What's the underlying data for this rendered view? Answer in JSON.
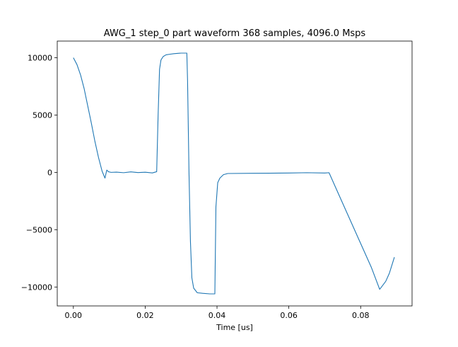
{
  "chart_data": {
    "type": "line",
    "title": "AWG_1 step_0 part waveform 368 samples, 4096.0 Msps",
    "xlabel": "Time [us]",
    "ylabel": "",
    "xlim": [
      -0.00449,
      0.09432
    ],
    "ylim": [
      -11650,
      11450
    ],
    "xticks": [
      0.0,
      0.02,
      0.04,
      0.06,
      0.08
    ],
    "xtick_labels": [
      "0.00",
      "0.02",
      "0.04",
      "0.06",
      "0.08"
    ],
    "yticks": [
      -10000,
      -5000,
      0,
      5000,
      10000
    ],
    "ytick_labels": [
      "−10000",
      "−5000",
      "0",
      "5000",
      "10000"
    ],
    "grid": false,
    "legend": "none",
    "series": [
      {
        "color": "#1f77b4",
        "x": [
          0.0,
          0.001,
          0.002,
          0.003,
          0.004,
          0.005,
          0.006,
          0.007,
          0.008,
          0.0088,
          0.0093,
          0.0098,
          0.0105,
          0.012,
          0.014,
          0.016,
          0.018,
          0.02,
          0.022,
          0.0232,
          0.0236,
          0.024,
          0.0244,
          0.025,
          0.0258,
          0.0268,
          0.028,
          0.03,
          0.0316,
          0.0318,
          0.0322,
          0.0326,
          0.033,
          0.0335,
          0.0345,
          0.036,
          0.038,
          0.0394,
          0.0397,
          0.0402,
          0.0408,
          0.0418,
          0.043,
          0.05,
          0.06,
          0.065,
          0.07,
          0.0712,
          0.074,
          0.077,
          0.08,
          0.083,
          0.0853,
          0.0858,
          0.087,
          0.088,
          0.0894
        ],
        "y": [
          10000,
          9400,
          8500,
          7300,
          5800,
          4300,
          2700,
          1300,
          100,
          -500,
          200,
          50,
          0,
          20,
          -30,
          40,
          -20,
          10,
          -50,
          60,
          5000,
          9000,
          9800,
          10100,
          10250,
          10300,
          10350,
          10400,
          10400,
          8000,
          0,
          -6000,
          -9200,
          -10100,
          -10500,
          -10550,
          -10600,
          -10600,
          -3000,
          -900,
          -500,
          -200,
          -100,
          -80,
          -60,
          -30,
          -60,
          -30,
          -2000,
          -4100,
          -6200,
          -8300,
          -10200,
          -10000,
          -9500,
          -8800,
          -7400
        ]
      }
    ]
  }
}
